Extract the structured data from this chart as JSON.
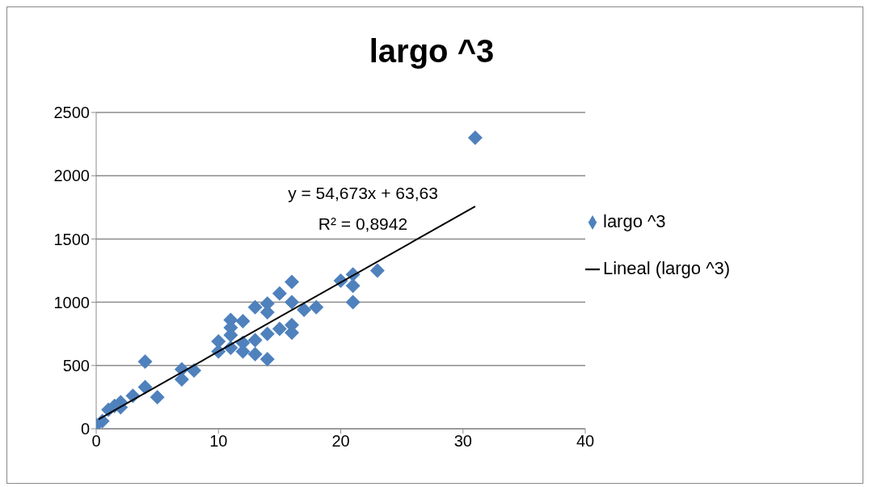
{
  "chart_data": {
    "type": "scatter",
    "title": "largo ^3",
    "annotations": [
      "y = 54,673x + 63,63",
      "R² = 0,8942"
    ],
    "series": [
      {
        "name": "largo ^3",
        "marker": "diamond",
        "color": "#4f81bd",
        "x": [
          0,
          0.5,
          1,
          1.5,
          2,
          2,
          3,
          4,
          4,
          5,
          7,
          7,
          8,
          10,
          10,
          11,
          11,
          11,
          11,
          12,
          12,
          12,
          13,
          13,
          13,
          14,
          14,
          14,
          14,
          15,
          15,
          16,
          16,
          16,
          16,
          17,
          18,
          20,
          21,
          21,
          21,
          23,
          31
        ],
        "values": [
          30,
          60,
          150,
          180,
          210,
          170,
          260,
          330,
          530,
          250,
          470,
          390,
          460,
          690,
          610,
          860,
          800,
          640,
          740,
          850,
          610,
          680,
          960,
          700,
          590,
          990,
          920,
          750,
          550,
          1070,
          790,
          1160,
          1000,
          760,
          820,
          940,
          960,
          1170,
          1220,
          1130,
          1000,
          1250,
          2300
        ]
      },
      {
        "name": "Lineal (largo ^3)",
        "type": "line",
        "marker": "none",
        "color": "#000000",
        "x": [
          0.2,
          31
        ],
        "values": [
          75,
          1758
        ]
      }
    ],
    "xlim": [
      0,
      40
    ],
    "xticks": [
      0,
      10,
      20,
      30,
      40
    ],
    "ylim": [
      0,
      2500
    ],
    "yticks": [
      0,
      500,
      1000,
      1500,
      2000,
      2500
    ],
    "grid": "y",
    "legend": "right"
  }
}
